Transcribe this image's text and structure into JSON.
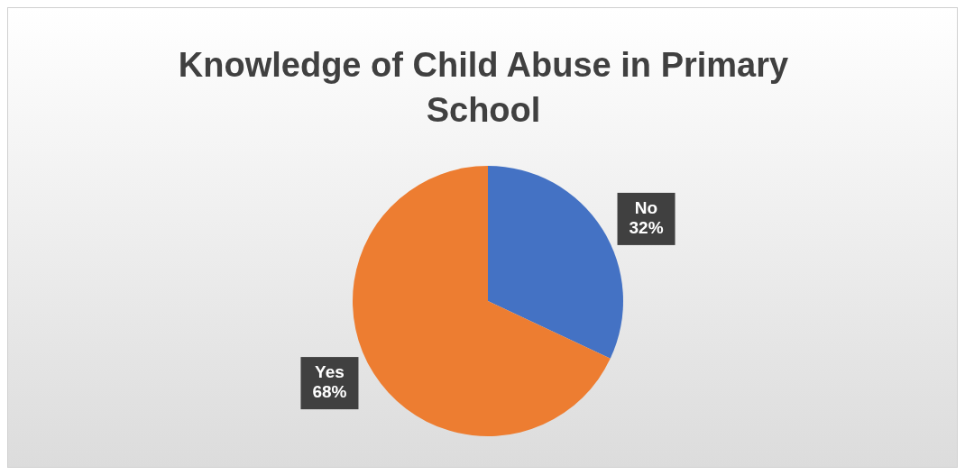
{
  "chart_data": {
    "type": "pie",
    "title": "Knowledge of Child Abuse in Primary School",
    "categories": [
      "No",
      "Yes"
    ],
    "values": [
      32,
      68
    ],
    "colors": [
      "#4472c4",
      "#ed7d31"
    ],
    "value_labels": [
      "32%",
      "68%"
    ],
    "legend": false
  }
}
